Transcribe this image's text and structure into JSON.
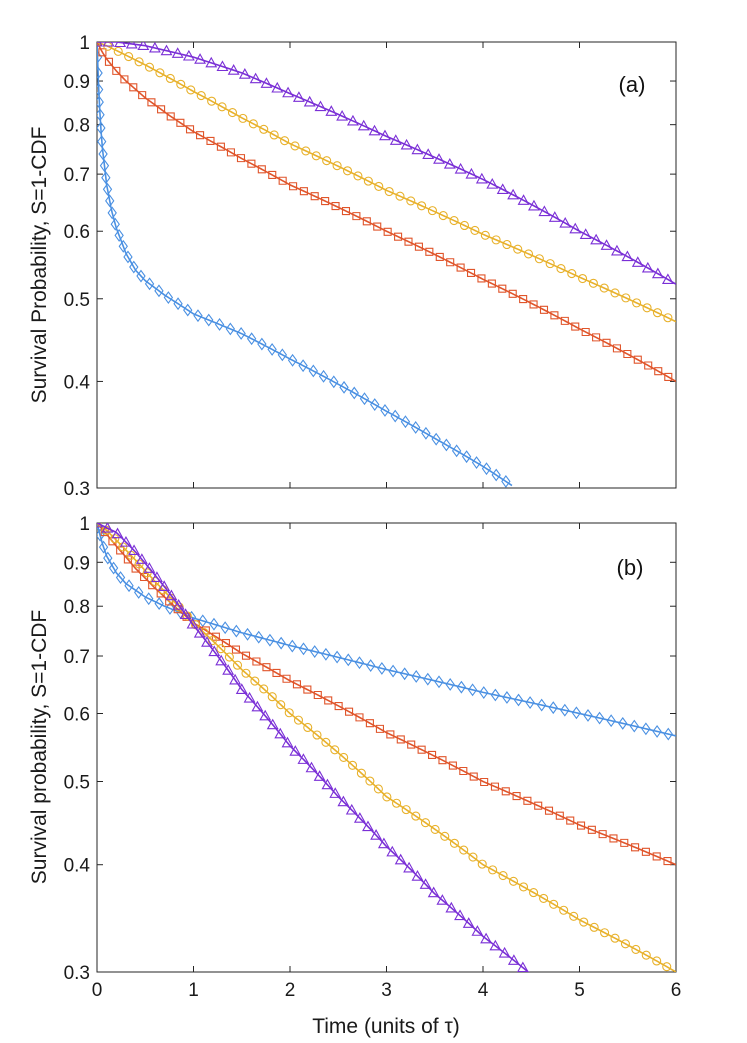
{
  "chart_data": [
    {
      "type": "line",
      "panel_label": "(a)",
      "ylabel": "Survival Probability, S=1-CDF",
      "xlabel": "",
      "xlim": [
        0,
        6
      ],
      "ylim": [
        0.3,
        1
      ],
      "yscale": "log",
      "xticks": [
        0,
        1,
        2,
        3,
        4,
        5,
        6
      ],
      "xtick_labels": [
        "",
        "",
        "",
        "",
        "",
        "",
        ""
      ],
      "yticks": [
        0.3,
        0.4,
        0.5,
        0.6,
        0.7,
        0.8,
        0.9,
        1
      ],
      "ytick_labels": [
        "0.3",
        "0.4",
        "0.5",
        "0.6",
        "0.7",
        "0.8",
        "0.9",
        "1"
      ],
      "series": [
        {
          "name": "blue",
          "color": "#4a90e2",
          "marker": "diamond",
          "x": [
            0,
            0.02,
            0.05,
            0.1,
            0.15,
            0.2,
            0.3,
            0.4,
            0.5,
            0.7,
            1,
            1.5,
            2,
            2.5,
            3,
            3.5,
            4,
            4.3
          ],
          "y": [
            1,
            0.86,
            0.76,
            0.68,
            0.635,
            0.605,
            0.565,
            0.54,
            0.525,
            0.505,
            0.48,
            0.455,
            0.425,
            0.397,
            0.369,
            0.343,
            0.318,
            0.302
          ]
        },
        {
          "name": "red",
          "color": "#e0552b",
          "marker": "square",
          "x": [
            0,
            0.05,
            0.1,
            0.2,
            0.3,
            0.5,
            0.75,
            1,
            1.5,
            2,
            3,
            4,
            5,
            6
          ],
          "y": [
            1,
            0.975,
            0.955,
            0.925,
            0.9,
            0.86,
            0.82,
            0.785,
            0.73,
            0.68,
            0.6,
            0.527,
            0.461,
            0.4
          ]
        },
        {
          "name": "yellow",
          "color": "#e8b12b",
          "marker": "circle",
          "x": [
            0,
            0.1,
            0.3,
            0.5,
            1,
            1.5,
            2,
            3,
            4,
            5,
            6
          ],
          "y": [
            1,
            0.99,
            0.965,
            0.94,
            0.875,
            0.815,
            0.76,
            0.67,
            0.595,
            0.53,
            0.47
          ]
        },
        {
          "name": "purple",
          "color": "#7a2fd6",
          "marker": "triangle",
          "x": [
            0,
            0.2,
            0.5,
            1,
            1.5,
            2,
            3,
            4,
            5,
            6
          ],
          "y": [
            1,
            1,
            0.99,
            0.96,
            0.92,
            0.87,
            0.775,
            0.69,
            0.6,
            0.52
          ]
        }
      ]
    },
    {
      "type": "line",
      "panel_label": "(b)",
      "ylabel": "Survival probability, S=1-CDF",
      "xlabel": "Time (units of τ)",
      "xlim": [
        0,
        6
      ],
      "ylim": [
        0.3,
        1
      ],
      "yscale": "log",
      "xticks": [
        0,
        1,
        2,
        3,
        4,
        5,
        6
      ],
      "xtick_labels": [
        "0",
        "1",
        "2",
        "3",
        "4",
        "5",
        "6"
      ],
      "yticks": [
        0.3,
        0.4,
        0.5,
        0.6,
        0.7,
        0.8,
        0.9,
        1
      ],
      "ytick_labels": [
        "0.3",
        "0.4",
        "0.5",
        "0.6",
        "0.7",
        "0.8",
        "0.9",
        "1"
      ],
      "series": [
        {
          "name": "blue",
          "color": "#4a90e2",
          "marker": "diamond",
          "x": [
            0,
            0.05,
            0.1,
            0.2,
            0.3,
            0.5,
            0.7,
            1,
            1.5,
            2,
            3,
            4,
            5,
            6
          ],
          "y": [
            1,
            0.95,
            0.915,
            0.875,
            0.85,
            0.82,
            0.8,
            0.775,
            0.745,
            0.72,
            0.675,
            0.635,
            0.6,
            0.565
          ]
        },
        {
          "name": "red",
          "color": "#e0552b",
          "marker": "square",
          "x": [
            0,
            0.1,
            0.2,
            0.4,
            0.6,
            0.8,
            1,
            1.5,
            2,
            3,
            4,
            5,
            6
          ],
          "y": [
            1,
            0.97,
            0.94,
            0.885,
            0.84,
            0.8,
            0.765,
            0.705,
            0.655,
            0.57,
            0.5,
            0.445,
            0.4
          ]
        },
        {
          "name": "yellow",
          "color": "#e8b12b",
          "marker": "circle",
          "x": [
            0,
            0.1,
            0.2,
            0.4,
            0.6,
            0.8,
            1,
            1.5,
            2,
            3,
            4,
            5,
            6
          ],
          "y": [
            1,
            0.98,
            0.955,
            0.905,
            0.855,
            0.81,
            0.765,
            0.675,
            0.6,
            0.48,
            0.4,
            0.345,
            0.3
          ]
        },
        {
          "name": "purple",
          "color": "#7a2fd6",
          "marker": "triangle",
          "x": [
            0,
            0.2,
            0.4,
            0.6,
            0.8,
            1,
            1.5,
            2,
            2.5,
            3,
            3.5,
            4,
            4.5
          ],
          "y": [
            1,
            0.975,
            0.925,
            0.87,
            0.815,
            0.76,
            0.64,
            0.55,
            0.48,
            0.42,
            0.37,
            0.33,
            0.298
          ]
        }
      ]
    }
  ]
}
